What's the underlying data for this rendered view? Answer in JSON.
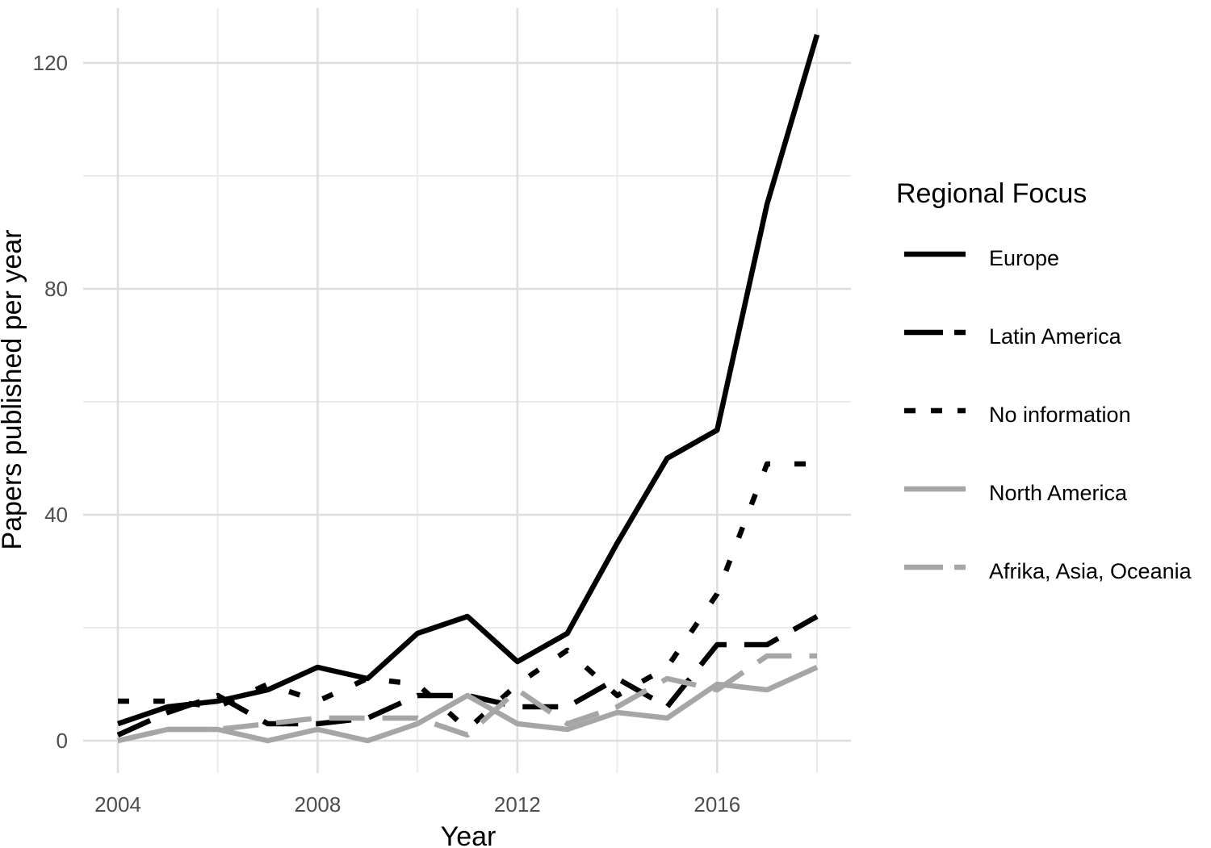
{
  "chart_data": {
    "type": "line",
    "xlabel": "Year",
    "ylabel": "Papers published per year",
    "xlim": [
      2004,
      2018
    ],
    "ylim": [
      -6,
      126
    ],
    "x_ticks": [
      2004,
      2008,
      2012,
      2016
    ],
    "y_ticks": [
      0,
      40,
      80,
      120
    ],
    "x_tick_labels": [
      "2004",
      "2008",
      "2012",
      "2016"
    ],
    "y_tick_labels": [
      "0",
      "40",
      "80",
      "120"
    ],
    "minor_y_gridlines": [
      20,
      60,
      100
    ],
    "minor_x_gridlines": [
      2006,
      2010,
      2014,
      2018
    ],
    "grid": true,
    "legend": {
      "title": "Regional Focus",
      "placement": "right"
    },
    "x": [
      2004,
      2005,
      2006,
      2007,
      2008,
      2009,
      2010,
      2011,
      2012,
      2013,
      2014,
      2015,
      2016,
      2017,
      2018
    ],
    "series": [
      {
        "name": "Europe",
        "color": "#000000",
        "dash": "solid",
        "values": [
          3,
          6,
          7,
          9,
          13,
          11,
          19,
          22,
          14,
          19,
          35,
          50,
          55,
          95,
          125
        ]
      },
      {
        "name": "Latin America",
        "color": "#000000",
        "dash": "longdash",
        "values": [
          1,
          5,
          8,
          3,
          3,
          4,
          8,
          8,
          6,
          6,
          11,
          6,
          17,
          17,
          22
        ]
      },
      {
        "name": "No information",
        "color": "#000000",
        "dash": "dotted",
        "values": [
          7,
          7,
          6,
          10,
          7,
          11,
          10,
          2,
          10,
          16,
          8,
          13,
          26,
          49,
          49
        ]
      },
      {
        "name": "North America",
        "color": "#a6a6a6",
        "dash": "solid",
        "values": [
          0,
          2,
          2,
          0,
          2,
          0,
          3,
          8,
          3,
          2,
          5,
          4,
          10,
          9,
          13
        ]
      },
      {
        "name": "Afrika, Asia, Oceania",
        "color": "#a6a6a6",
        "dash": "longdash",
        "values": [
          0,
          2,
          2,
          3,
          4,
          4,
          4,
          1,
          9,
          3,
          6,
          11,
          9,
          15,
          15
        ]
      }
    ]
  }
}
